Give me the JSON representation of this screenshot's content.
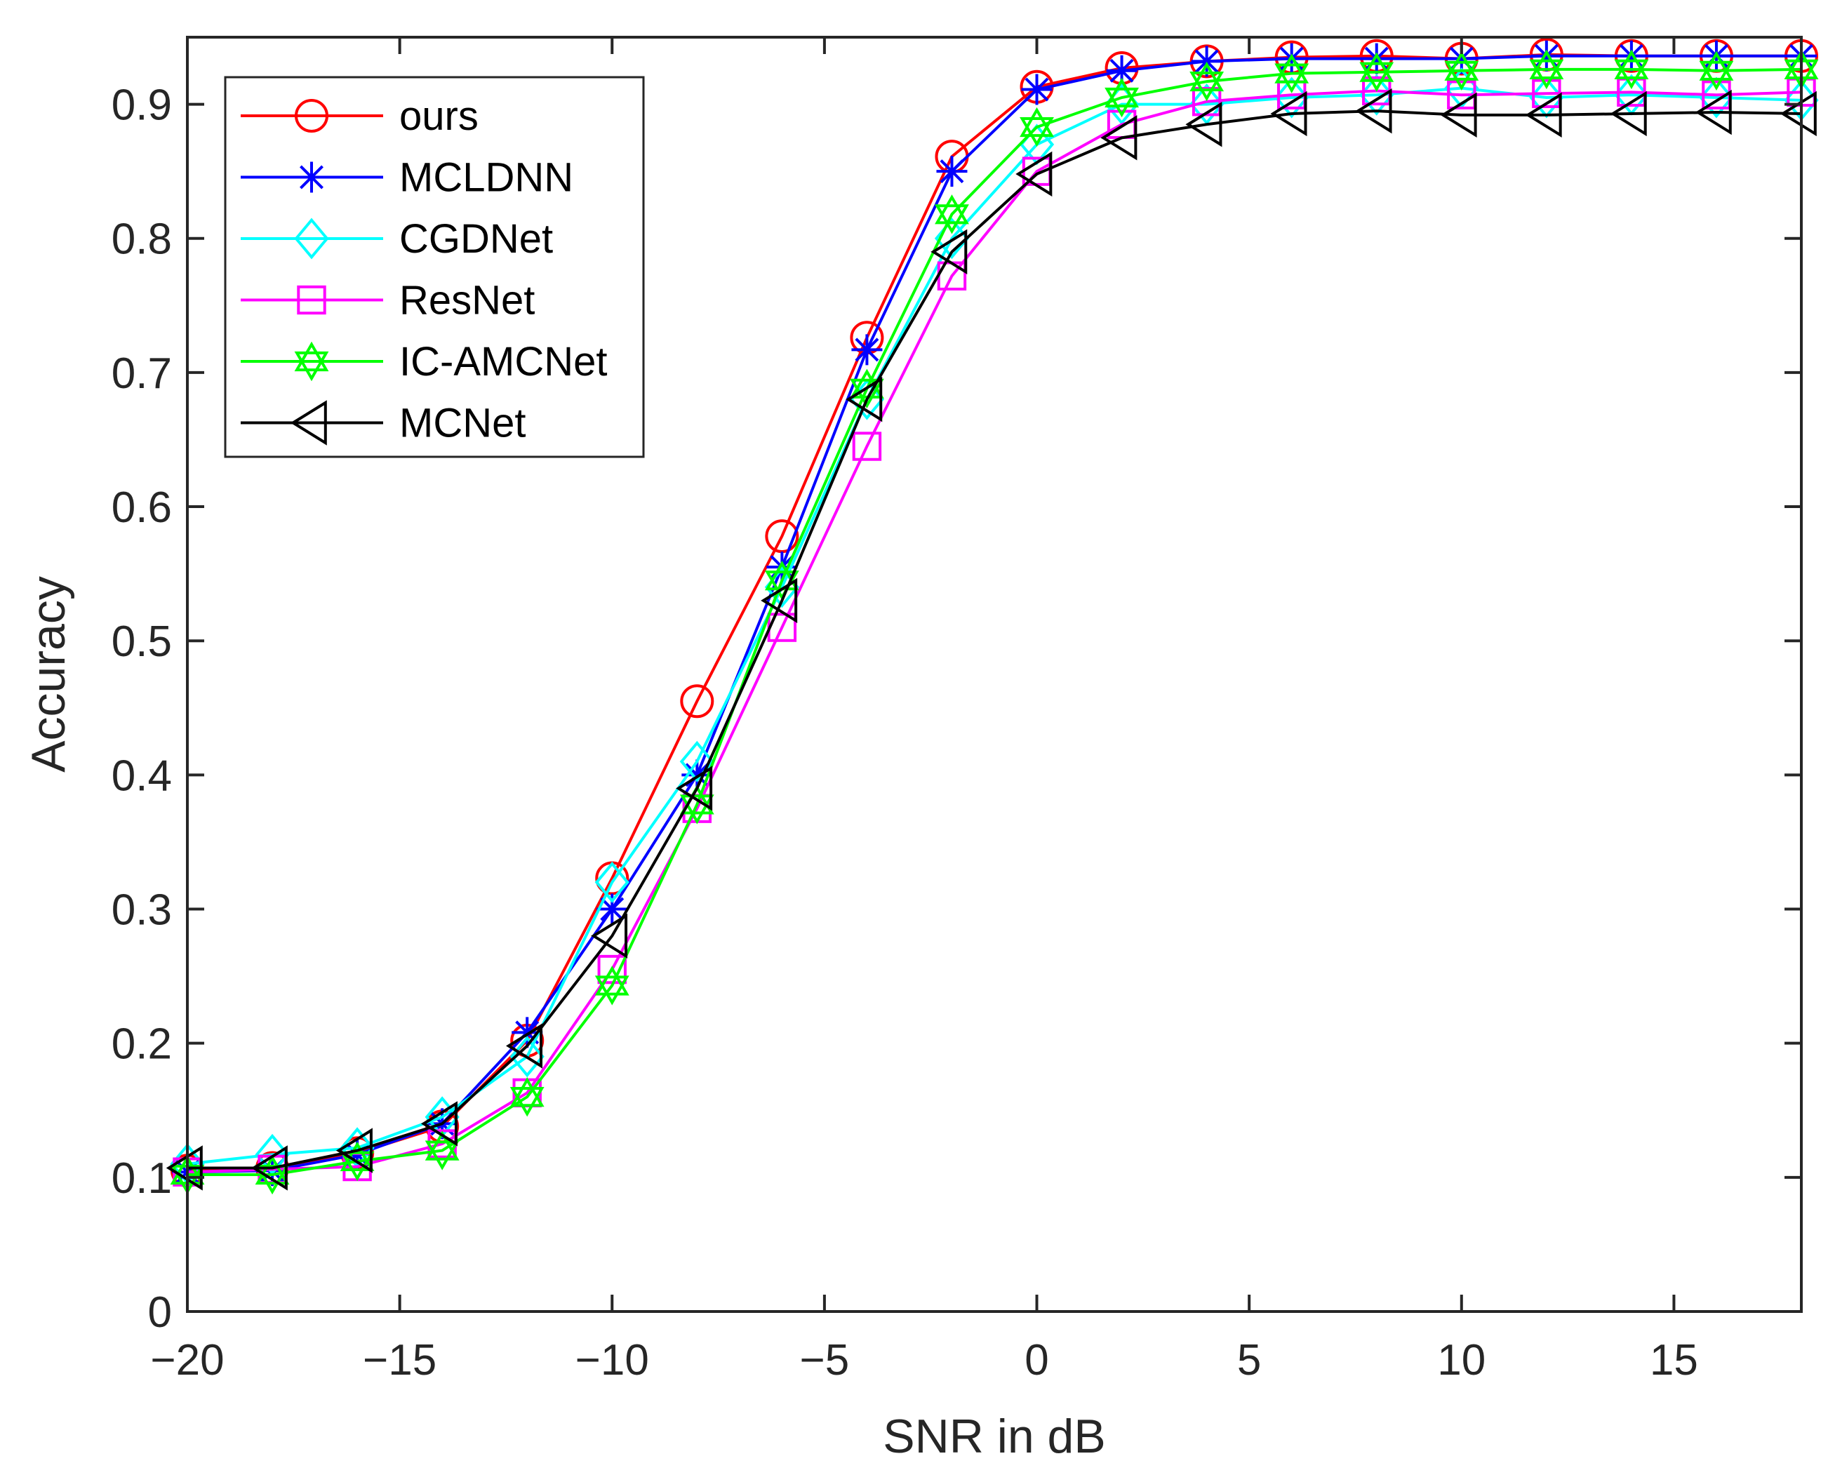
{
  "chart_data": {
    "type": "line",
    "title": "",
    "xlabel": "SNR in dB",
    "ylabel": "Accuracy",
    "xlim": [
      -20,
      18
    ],
    "ylim": [
      0,
      0.95
    ],
    "xticks": [
      -20,
      -15,
      -10,
      -5,
      0,
      5,
      10,
      15
    ],
    "xtick_labels": [
      "−20",
      "−15",
      "−10",
      "−5",
      "0",
      "5",
      "10",
      "15"
    ],
    "yticks": [
      0,
      0.1,
      0.2,
      0.3,
      0.4,
      0.5,
      0.6,
      0.7,
      0.8,
      0.9
    ],
    "ytick_labels": [
      "0",
      "0.1",
      "0.2",
      "0.3",
      "0.4",
      "0.5",
      "0.6",
      "0.7",
      "0.8",
      "0.9"
    ],
    "grid": false,
    "legend_position": "top-left",
    "x": [
      -20,
      -18,
      -16,
      -14,
      -12,
      -10,
      -8,
      -6,
      -4,
      -2,
      0,
      2,
      4,
      6,
      8,
      10,
      12,
      14,
      16,
      18
    ],
    "series": [
      {
        "name": "ours",
        "color": "#ff0000",
        "marker": "circle",
        "values": [
          0.105,
          0.107,
          0.118,
          0.138,
          0.202,
          0.323,
          0.455,
          0.578,
          0.726,
          0.861,
          0.913,
          0.927,
          0.932,
          0.935,
          0.936,
          0.934,
          0.937,
          0.936,
          0.936,
          0.936
        ]
      },
      {
        "name": "MCLDNN",
        "color": "#0000ff",
        "marker": "asterisk",
        "values": [
          0.104,
          0.105,
          0.117,
          0.14,
          0.208,
          0.3,
          0.4,
          0.555,
          0.717,
          0.85,
          0.911,
          0.925,
          0.932,
          0.934,
          0.934,
          0.934,
          0.936,
          0.936,
          0.936,
          0.936
        ]
      },
      {
        "name": "CGDNet",
        "color": "#00ffff",
        "marker": "diamond",
        "values": [
          0.11,
          0.117,
          0.122,
          0.145,
          0.19,
          0.32,
          0.41,
          0.54,
          0.68,
          0.8,
          0.87,
          0.9,
          0.9,
          0.905,
          0.907,
          0.912,
          0.905,
          0.907,
          0.905,
          0.903
        ]
      },
      {
        "name": "ResNet",
        "color": "#ff00ff",
        "marker": "square",
        "values": [
          0.104,
          0.106,
          0.108,
          0.125,
          0.163,
          0.255,
          0.375,
          0.51,
          0.645,
          0.772,
          0.85,
          0.885,
          0.902,
          0.907,
          0.91,
          0.907,
          0.908,
          0.909,
          0.907,
          0.909
        ]
      },
      {
        "name": "IC-AMCNet",
        "color": "#00ff00",
        "marker": "hexagram",
        "values": [
          0.102,
          0.102,
          0.112,
          0.12,
          0.16,
          0.243,
          0.378,
          0.545,
          0.688,
          0.818,
          0.883,
          0.905,
          0.917,
          0.923,
          0.924,
          0.925,
          0.926,
          0.926,
          0.925,
          0.926
        ]
      },
      {
        "name": "MCNet",
        "color": "#000000",
        "marker": "triangle-left",
        "values": [
          0.107,
          0.107,
          0.12,
          0.14,
          0.198,
          0.28,
          0.39,
          0.53,
          0.68,
          0.79,
          0.848,
          0.875,
          0.885,
          0.893,
          0.895,
          0.892,
          0.892,
          0.893,
          0.894,
          0.893
        ]
      }
    ]
  }
}
